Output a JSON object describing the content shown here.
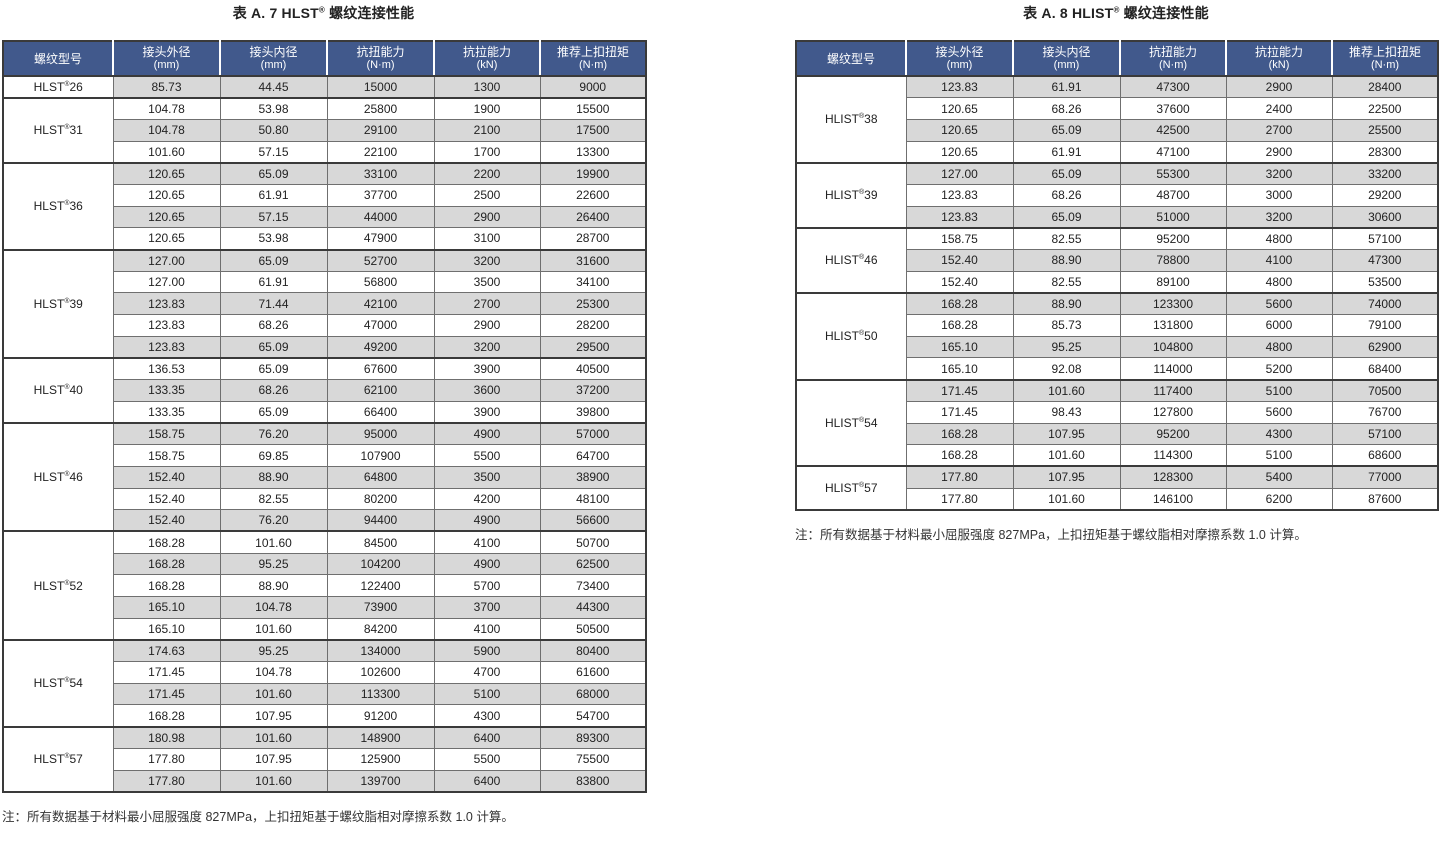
{
  "colors": {
    "header_bg": "#41598C",
    "header_text": "#ffffff",
    "shaded_row_bg": "#d8d8d8",
    "border_dark": "#3a3a3a",
    "border_light": "#6f6f6f"
  },
  "tables": [
    {
      "title": {
        "prefix": "表 A. 7 HLST",
        "reg": "®",
        "suffix": " 螺纹连接性能"
      },
      "columns": [
        {
          "label": "螺纹型号",
          "unit": ""
        },
        {
          "label": "接头外径",
          "unit": "(mm)"
        },
        {
          "label": "接头内径",
          "unit": "(mm)"
        },
        {
          "label": "抗扭能力",
          "unit": "(N·m)"
        },
        {
          "label": "抗拉能力",
          "unit": "(kN)"
        },
        {
          "label": "推荐上扣扭矩",
          "unit": "(N·m)"
        }
      ],
      "groups": [
        {
          "model": "HLST®26",
          "rows": [
            [
              "85.73",
              "44.45",
              "15000",
              "1300",
              "9000"
            ]
          ]
        },
        {
          "model": "HLST®31",
          "rows": [
            [
              "104.78",
              "53.98",
              "25800",
              "1900",
              "15500"
            ],
            [
              "104.78",
              "50.80",
              "29100",
              "2100",
              "17500"
            ],
            [
              "101.60",
              "57.15",
              "22100",
              "1700",
              "13300"
            ]
          ]
        },
        {
          "model": "HLST®36",
          "rows": [
            [
              "120.65",
              "65.09",
              "33100",
              "2200",
              "19900"
            ],
            [
              "120.65",
              "61.91",
              "37700",
              "2500",
              "22600"
            ],
            [
              "120.65",
              "57.15",
              "44000",
              "2900",
              "26400"
            ],
            [
              "120.65",
              "53.98",
              "47900",
              "3100",
              "28700"
            ]
          ]
        },
        {
          "model": "HLST®39",
          "rows": [
            [
              "127.00",
              "65.09",
              "52700",
              "3200",
              "31600"
            ],
            [
              "127.00",
              "61.91",
              "56800",
              "3500",
              "34100"
            ],
            [
              "123.83",
              "71.44",
              "42100",
              "2700",
              "25300"
            ],
            [
              "123.83",
              "68.26",
              "47000",
              "2900",
              "28200"
            ],
            [
              "123.83",
              "65.09",
              "49200",
              "3200",
              "29500"
            ]
          ]
        },
        {
          "model": "HLST®40",
          "rows": [
            [
              "136.53",
              "65.09",
              "67600",
              "3900",
              "40500"
            ],
            [
              "133.35",
              "68.26",
              "62100",
              "3600",
              "37200"
            ],
            [
              "133.35",
              "65.09",
              "66400",
              "3900",
              "39800"
            ]
          ]
        },
        {
          "model": "HLST®46",
          "rows": [
            [
              "158.75",
              "76.20",
              "95000",
              "4900",
              "57000"
            ],
            [
              "158.75",
              "69.85",
              "107900",
              "5500",
              "64700"
            ],
            [
              "152.40",
              "88.90",
              "64800",
              "3500",
              "38900"
            ],
            [
              "152.40",
              "82.55",
              "80200",
              "4200",
              "48100"
            ],
            [
              "152.40",
              "76.20",
              "94400",
              "4900",
              "56600"
            ]
          ]
        },
        {
          "model": "HLST®52",
          "rows": [
            [
              "168.28",
              "101.60",
              "84500",
              "4100",
              "50700"
            ],
            [
              "168.28",
              "95.25",
              "104200",
              "4900",
              "62500"
            ],
            [
              "168.28",
              "88.90",
              "122400",
              "5700",
              "73400"
            ],
            [
              "165.10",
              "104.78",
              "73900",
              "3700",
              "44300"
            ],
            [
              "165.10",
              "101.60",
              "84200",
              "4100",
              "50500"
            ]
          ]
        },
        {
          "model": "HLST®54",
          "rows": [
            [
              "174.63",
              "95.25",
              "134000",
              "5900",
              "80400"
            ],
            [
              "171.45",
              "104.78",
              "102600",
              "4700",
              "61600"
            ],
            [
              "171.45",
              "101.60",
              "113300",
              "5100",
              "68000"
            ],
            [
              "168.28",
              "107.95",
              "91200",
              "4300",
              "54700"
            ]
          ]
        },
        {
          "model": "HLST®57",
          "rows": [
            [
              "180.98",
              "101.60",
              "148900",
              "6400",
              "89300"
            ],
            [
              "177.80",
              "107.95",
              "125900",
              "5500",
              "75500"
            ],
            [
              "177.80",
              "101.60",
              "139700",
              "6400",
              "83800"
            ]
          ]
        }
      ],
      "note": "注：所有数据基于材料最小屈服强度 827MPa，上扣扭矩基于螺纹脂相对摩擦系数 1.0 计算。"
    },
    {
      "title": {
        "prefix": "表 A. 8 HLIST",
        "reg": "®",
        "suffix": " 螺纹连接性能"
      },
      "columns": [
        {
          "label": "螺纹型号",
          "unit": ""
        },
        {
          "label": "接头外径",
          "unit": "(mm)"
        },
        {
          "label": "接头内径",
          "unit": "(mm)"
        },
        {
          "label": "抗扭能力",
          "unit": "(N·m)"
        },
        {
          "label": "抗拉能力",
          "unit": "(kN)"
        },
        {
          "label": "推荐上扣扭矩",
          "unit": "(N·m)"
        }
      ],
      "groups": [
        {
          "model": "HLIST®38",
          "rows": [
            [
              "123.83",
              "61.91",
              "47300",
              "2900",
              "28400"
            ],
            [
              "120.65",
              "68.26",
              "37600",
              "2400",
              "22500"
            ],
            [
              "120.65",
              "65.09",
              "42500",
              "2700",
              "25500"
            ],
            [
              "120.65",
              "61.91",
              "47100",
              "2900",
              "28300"
            ]
          ]
        },
        {
          "model": "HLIST®39",
          "rows": [
            [
              "127.00",
              "65.09",
              "55300",
              "3200",
              "33200"
            ],
            [
              "123.83",
              "68.26",
              "48700",
              "3000",
              "29200"
            ],
            [
              "123.83",
              "65.09",
              "51000",
              "3200",
              "30600"
            ]
          ]
        },
        {
          "model": "HLIST®46",
          "rows": [
            [
              "158.75",
              "82.55",
              "95200",
              "4800",
              "57100"
            ],
            [
              "152.40",
              "88.90",
              "78800",
              "4100",
              "47300"
            ],
            [
              "152.40",
              "82.55",
              "89100",
              "4800",
              "53500"
            ]
          ]
        },
        {
          "model": "HLIST®50",
          "rows": [
            [
              "168.28",
              "88.90",
              "123300",
              "5600",
              "74000"
            ],
            [
              "168.28",
              "85.73",
              "131800",
              "6000",
              "79100"
            ],
            [
              "165.10",
              "95.25",
              "104800",
              "4800",
              "62900"
            ],
            [
              "165.10",
              "92.08",
              "114000",
              "5200",
              "68400"
            ]
          ]
        },
        {
          "model": "HLIST®54",
          "rows": [
            [
              "171.45",
              "101.60",
              "117400",
              "5100",
              "70500"
            ],
            [
              "171.45",
              "98.43",
              "127800",
              "5600",
              "76700"
            ],
            [
              "168.28",
              "107.95",
              "95200",
              "4300",
              "57100"
            ],
            [
              "168.28",
              "101.60",
              "114300",
              "5100",
              "68600"
            ]
          ]
        },
        {
          "model": "HLIST®57",
          "rows": [
            [
              "177.80",
              "107.95",
              "128300",
              "5400",
              "77000"
            ],
            [
              "177.80",
              "101.60",
              "146100",
              "6200",
              "87600"
            ]
          ]
        }
      ],
      "note": "注：所有数据基于材料最小屈服强度 827MPa，上扣扭矩基于螺纹脂相对摩擦系数 1.0 计算。"
    }
  ]
}
